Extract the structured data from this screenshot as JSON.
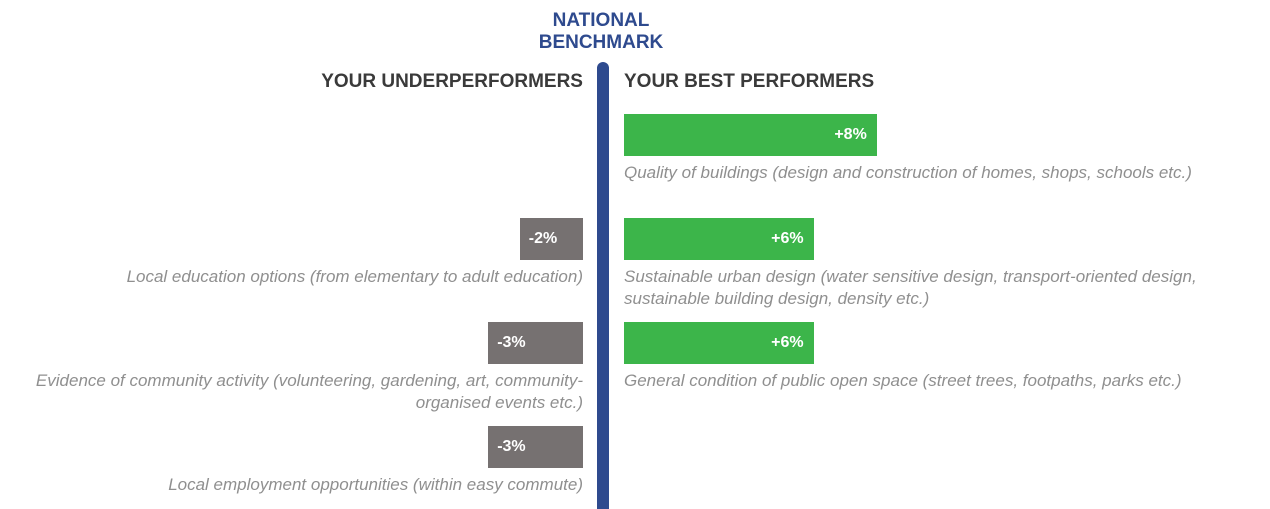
{
  "chart_data": {
    "type": "diverging_bar",
    "title": "NATIONAL BENCHMARK",
    "benchmark_color": "#2e4a8e",
    "series": [
      {
        "name": "YOUR UNDERPERFORMERS",
        "color": "#767171",
        "categories": [
          "Local education options (from elementary to adult education)",
          "Evidence of community activity (volunteering, gardening, art, community-organised events etc.)",
          "Local employment opportunities (within easy commute)"
        ],
        "values": [
          -2,
          -3,
          -3
        ],
        "value_labels": [
          "-2%",
          "-3%",
          "-3%"
        ]
      },
      {
        "name": "YOUR BEST PERFORMERS",
        "color": "#3cb54a",
        "categories": [
          "Quality of buildings (design and construction of homes, shops, schools etc.)",
          "Sustainable urban design (water sensitive design, transport-oriented design, sustainable building design, density etc.)",
          "General condition of public open space (street trees, footpaths, parks etc.)"
        ],
        "values": [
          8,
          6,
          6
        ],
        "value_labels": [
          "+8%",
          "+6%",
          "+6%"
        ]
      }
    ]
  }
}
